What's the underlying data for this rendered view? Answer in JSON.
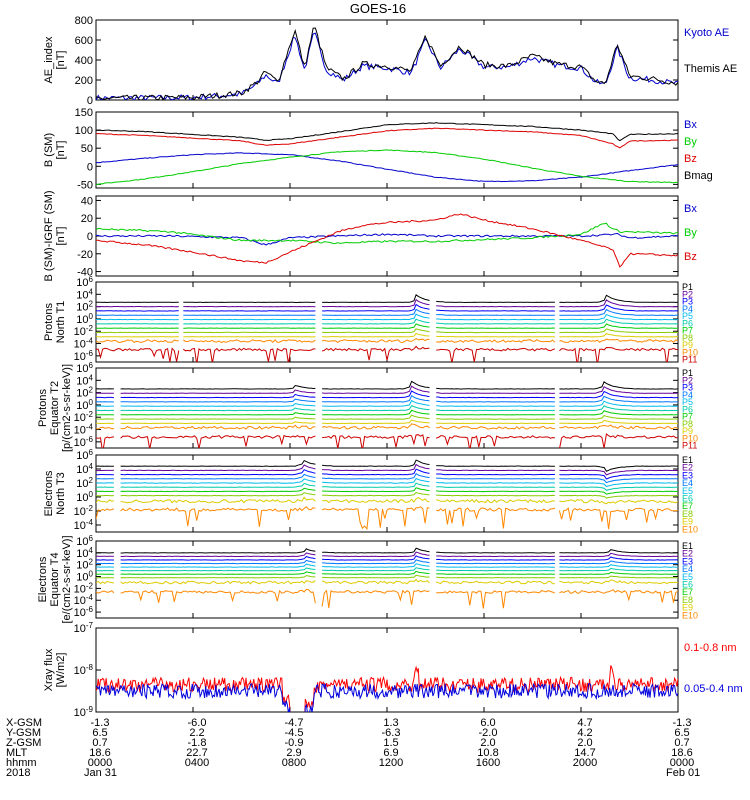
{
  "title": "GOES-16",
  "colors": {
    "frame": "#000000",
    "kyoto": "#0000cc",
    "themis": "#000000",
    "bx": "#0000cc",
    "by": "#00cc00",
    "bz": "#dd0000",
    "bmag": "#000000",
    "xray_long": "#ff0000",
    "xray_short": "#0000dd",
    "ch": [
      "#000000",
      "#660099",
      "#0000ff",
      "#0077ff",
      "#00bbee",
      "#00ccaa",
      "#00cc00",
      "#88cc00",
      "#ddcc00",
      "#ff8800",
      "#cc0000"
    ]
  },
  "chart_data": [
    {
      "id": "ae",
      "type": "line",
      "ylabel": [
        "AE_index",
        "[nT]"
      ],
      "yscale": "linear",
      "ylim": [
        0,
        800
      ],
      "yticks": [
        "800",
        "600",
        "400",
        "200",
        "0"
      ],
      "legend": [
        {
          "text": "Kyoto AE",
          "color": "kyoto"
        },
        {
          "text": "Themis AE",
          "color": "themis"
        }
      ],
      "series": [
        {
          "name": "Kyoto AE",
          "color": "kyoto",
          "t": [
            0,
            2,
            4,
            5,
            6,
            6.6,
            7.0,
            7.5,
            8.2,
            8.6,
            9.0,
            9.5,
            10.2,
            11,
            12,
            13,
            13.6,
            14.2,
            15,
            16,
            17,
            18,
            19,
            20,
            20.6,
            21.0,
            21.5,
            22,
            23,
            24
          ],
          "v": [
            20,
            20,
            25,
            40,
            60,
            150,
            250,
            160,
            650,
            300,
            680,
            300,
            200,
            340,
            320,
            270,
            600,
            320,
            510,
            330,
            330,
            420,
            350,
            320,
            180,
            150,
            520,
            220,
            200,
            160
          ]
        },
        {
          "name": "Themis AE",
          "color": "themis",
          "t": [
            0,
            2,
            4,
            5,
            6,
            6.6,
            7.0,
            7.5,
            8.2,
            8.6,
            9.0,
            9.5,
            10.2,
            11,
            12,
            13,
            13.6,
            14.2,
            15,
            16,
            17,
            18,
            19,
            20,
            20.6,
            21.0,
            21.5,
            22,
            23,
            24
          ],
          "v": [
            15,
            20,
            25,
            45,
            70,
            170,
            280,
            180,
            700,
            320,
            750,
            320,
            210,
            360,
            340,
            290,
            640,
            340,
            540,
            350,
            340,
            440,
            360,
            330,
            190,
            160,
            560,
            240,
            210,
            170
          ]
        }
      ]
    },
    {
      "id": "bsm",
      "type": "line",
      "ylabel": [
        "B (SM)",
        "[nT]"
      ],
      "yscale": "linear",
      "ylim": [
        -60,
        150
      ],
      "yticks": [
        "150",
        "100",
        "50",
        "0",
        "-50"
      ],
      "legend": [
        {
          "text": "Bx",
          "color": "bx"
        },
        {
          "text": "By",
          "color": "by"
        },
        {
          "text": "Bz",
          "color": "bz"
        },
        {
          "text": "Bmag",
          "color": "bmag"
        }
      ],
      "series": [
        {
          "name": "Bx",
          "color": "bx",
          "t": [
            0,
            2,
            4,
            6,
            8,
            10,
            12,
            14,
            16,
            18,
            20,
            22,
            24
          ],
          "v": [
            10,
            22,
            32,
            37,
            32,
            15,
            -8,
            -30,
            -42,
            -40,
            -30,
            -12,
            5
          ]
        },
        {
          "name": "By",
          "color": "by",
          "t": [
            0,
            2,
            4,
            6,
            8,
            10,
            12,
            14,
            16,
            18,
            20,
            22,
            24
          ],
          "v": [
            -50,
            -35,
            -15,
            8,
            25,
            40,
            45,
            38,
            20,
            -5,
            -28,
            -42,
            -45
          ]
        },
        {
          "name": "Bz",
          "color": "bz",
          "t": [
            0,
            2,
            4,
            6,
            7,
            8,
            10,
            12,
            14,
            16,
            18,
            20,
            21.3,
            21.6,
            22,
            24
          ],
          "v": [
            90,
            85,
            78,
            70,
            58,
            62,
            80,
            98,
            105,
            100,
            95,
            85,
            62,
            50,
            70,
            72
          ]
        },
        {
          "name": "Bmag",
          "color": "bmag",
          "t": [
            0,
            2,
            4,
            6,
            7,
            8,
            10,
            12,
            14,
            16,
            18,
            20,
            21.3,
            21.6,
            22,
            24
          ],
          "v": [
            100,
            96,
            88,
            80,
            72,
            76,
            95,
            115,
            120,
            115,
            110,
            100,
            90,
            70,
            88,
            90
          ]
        }
      ]
    },
    {
      "id": "bigrf",
      "type": "line",
      "ylabel": [
        "B (SM)-IGRF (SM)",
        "[nT]"
      ],
      "yscale": "linear",
      "ylim": [
        -45,
        45
      ],
      "yticks": [
        "40",
        "20",
        "0",
        "-20",
        "-40"
      ],
      "legend": [
        {
          "text": "Bx",
          "color": "bx"
        },
        {
          "text": "By",
          "color": "by"
        },
        {
          "text": "Bz",
          "color": "bz"
        }
      ],
      "series": [
        {
          "name": "Bx",
          "color": "bx",
          "t": [
            0,
            3,
            6,
            7,
            8,
            10,
            12,
            14,
            16,
            18,
            20,
            21.5,
            22,
            24
          ],
          "v": [
            0,
            0,
            -2,
            -10,
            -2,
            0,
            2,
            0,
            0,
            0,
            0,
            2,
            -2,
            0
          ]
        },
        {
          "name": "By",
          "color": "by",
          "t": [
            0,
            3,
            6,
            8,
            10,
            12,
            14,
            16,
            18,
            20,
            21.0,
            21.3,
            21.6,
            24
          ],
          "v": [
            8,
            5,
            -5,
            -5,
            -8,
            -6,
            -6,
            -4,
            -2,
            2,
            15,
            8,
            5,
            3
          ]
        },
        {
          "name": "Bz",
          "color": "bz",
          "t": [
            0,
            2,
            4,
            6,
            7.0,
            8,
            10,
            11,
            12,
            14,
            15,
            16,
            18,
            20,
            21.3,
            21.6,
            22,
            24
          ],
          "v": [
            -5,
            -10,
            -18,
            -28,
            -30,
            -18,
            5,
            12,
            15,
            18,
            25,
            18,
            8,
            -5,
            -15,
            -35,
            -20,
            -22
          ]
        }
      ]
    },
    {
      "id": "p_north",
      "type": "line",
      "ylabel": [
        "Protons",
        "North T1"
      ],
      "yscale": "log",
      "ylim": [
        -7,
        6
      ],
      "yticks": [
        "10^6",
        "10^4",
        "10^2",
        "10^0",
        "10^-2",
        "10^-4",
        "10^-6"
      ],
      "legend": [
        {
          "text": "P1"
        },
        {
          "text": "P2"
        },
        {
          "text": "P3"
        },
        {
          "text": "P4"
        },
        {
          "text": "P5"
        },
        {
          "text": "P6"
        },
        {
          "text": "P7"
        },
        {
          "text": "P8"
        },
        {
          "text": "P9"
        },
        {
          "text": "P10"
        },
        {
          "text": "P11"
        }
      ],
      "levels": [
        2.7,
        2.0,
        1.3,
        0.6,
        -0.1,
        -0.8,
        -1.5,
        -2.2,
        -2.9,
        -3.6,
        -5.0
      ],
      "spikes": [
        {
          "t": 13.2,
          "amp": 1.2
        },
        {
          "t": 21.0,
          "amp": 1.3
        }
      ],
      "gaps": [
        3.5,
        9.2,
        13.9,
        19.0
      ]
    },
    {
      "id": "p_equator",
      "type": "line",
      "ylabel": [
        "Protons",
        "Equator T2",
        "[p/(cm2-s-sr-keV)]"
      ],
      "yscale": "log",
      "ylim": [
        -7,
        6
      ],
      "yticks": [
        "10^6",
        "10^4",
        "10^2",
        "10^0",
        "10^-2",
        "10^-4",
        "10^-6"
      ],
      "legend": [
        {
          "text": "P1"
        },
        {
          "text": "P2"
        },
        {
          "text": "P3"
        },
        {
          "text": "P4"
        },
        {
          "text": "P5"
        },
        {
          "text": "P6"
        },
        {
          "text": "P7"
        },
        {
          "text": "P8"
        },
        {
          "text": "P9"
        },
        {
          "text": "P10"
        },
        {
          "text": "P11"
        }
      ],
      "levels": [
        2.6,
        1.9,
        1.2,
        0.5,
        -0.2,
        -0.9,
        -1.6,
        -2.3,
        -3.0,
        -3.7,
        -5.2
      ],
      "spikes": [
        {
          "t": 8.2,
          "amp": 0.6
        },
        {
          "t": 13.0,
          "amp": 1.3
        },
        {
          "t": 20.9,
          "amp": 1.3
        }
      ],
      "gaps": [
        0.9,
        9.2,
        13.9,
        19.0
      ]
    },
    {
      "id": "e_north",
      "type": "line",
      "ylabel": [
        "Electrons",
        "North T3"
      ],
      "yscale": "log",
      "ylim": [
        -5,
        6
      ],
      "yticks": [
        "10^6",
        "10^4",
        "10^2",
        "10^0",
        "10^-2",
        "10^-4"
      ],
      "legend": [
        {
          "text": "E1"
        },
        {
          "text": "E2"
        },
        {
          "text": "E3"
        },
        {
          "text": "E4"
        },
        {
          "text": "E5"
        },
        {
          "text": "E6"
        },
        {
          "text": "E7"
        },
        {
          "text": "E8"
        },
        {
          "text": "E9"
        },
        {
          "text": "E10"
        }
      ],
      "levels": [
        4.4,
        3.8,
        3.2,
        2.6,
        2.0,
        1.4,
        0.8,
        0.2,
        -0.6,
        -1.8
      ],
      "spikes": [
        {
          "t": 8.5,
          "amp": 1.0
        },
        {
          "t": 13.2,
          "amp": 0.9
        },
        {
          "t": 21.0,
          "amp": -0.8
        }
      ],
      "gaps": [
        0.9,
        9.2,
        13.9,
        19.0
      ]
    },
    {
      "id": "e_equator",
      "type": "line",
      "ylabel": [
        "Electrons",
        "Equator T4",
        "[e/(cm2-s-sr-keV)]"
      ],
      "yscale": "log",
      "ylim": [
        -7,
        6
      ],
      "yticks": [
        "10^6",
        "10^4",
        "10^2",
        "10^0",
        "10^-2",
        "10^-4",
        "10^-6"
      ],
      "legend": [
        {
          "text": "E1"
        },
        {
          "text": "E2"
        },
        {
          "text": "E3"
        },
        {
          "text": "E4"
        },
        {
          "text": "E5"
        },
        {
          "text": "E6"
        },
        {
          "text": "E7"
        },
        {
          "text": "E8"
        },
        {
          "text": "E9"
        },
        {
          "text": "E10"
        }
      ],
      "levels": [
        4.0,
        3.4,
        2.8,
        2.2,
        1.6,
        1.0,
        0.4,
        -0.2,
        -1.0,
        -2.6
      ],
      "spikes": [
        {
          "t": 8.6,
          "amp": 0.8
        },
        {
          "t": 13.2,
          "amp": 0.8
        },
        {
          "t": 21.2,
          "amp": 0.6
        }
      ],
      "gaps": [
        0.9,
        9.2,
        13.9,
        19.0
      ]
    },
    {
      "id": "xray",
      "type": "line",
      "ylabel": [
        "Xray flux",
        "[W/m2]"
      ],
      "yscale": "log",
      "ylim": [
        -9,
        -7
      ],
      "yticks": [
        "10^-7",
        "10^-8",
        "10^-9"
      ],
      "legend": [
        {
          "text": "0.1-0.8 nm",
          "color": "xray_long"
        },
        {
          "text": "0.05-0.4 nm",
          "color": "xray_short"
        }
      ],
      "series": [
        {
          "name": "0.1-0.8 nm",
          "color": "xray_long",
          "level": -8.35
        },
        {
          "name": "0.05-0.4 nm",
          "color": "xray_short",
          "level": -8.5
        }
      ],
      "dropouts": [
        7.7,
        8.9
      ]
    }
  ],
  "x_axis": {
    "row_labels": [
      "X-GSM",
      "Y-GSM",
      "Z-GSM",
      "MLT",
      "hhmm",
      "2018"
    ],
    "columns": [
      [
        "-1.3",
        "6.5",
        "0.7",
        "18.6",
        "0000",
        "Jan 31"
      ],
      [
        "-6.0",
        "2.2",
        "-1.8",
        "22.7",
        "0400",
        ""
      ],
      [
        "-4.7",
        "-4.5",
        "-0.9",
        "2.9",
        "0800",
        ""
      ],
      [
        "1.3",
        "-6.3",
        "1.5",
        "6.9",
        "1200",
        ""
      ],
      [
        "6.0",
        "-2.0",
        "2.0",
        "10.8",
        "1600",
        ""
      ],
      [
        "4.7",
        "4.2",
        "2.0",
        "14.7",
        "2000",
        ""
      ],
      [
        "-1.3",
        "6.5",
        "0.7",
        "18.6",
        "0000",
        "Feb 01"
      ]
    ]
  }
}
